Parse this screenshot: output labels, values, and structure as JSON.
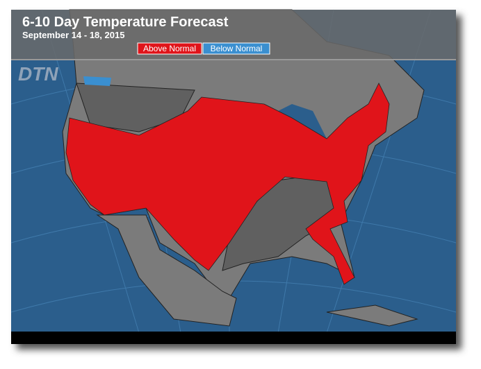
{
  "header": {
    "title": "6-10 Day Temperature Forecast",
    "subtitle": "September 14 - 18, 2015",
    "logo": "DTN"
  },
  "legend": {
    "items": [
      {
        "label": "Above Normal",
        "color": "#e0141a"
      },
      {
        "label": "Below Normal",
        "color": "#3a8fd0"
      }
    ]
  }
}
